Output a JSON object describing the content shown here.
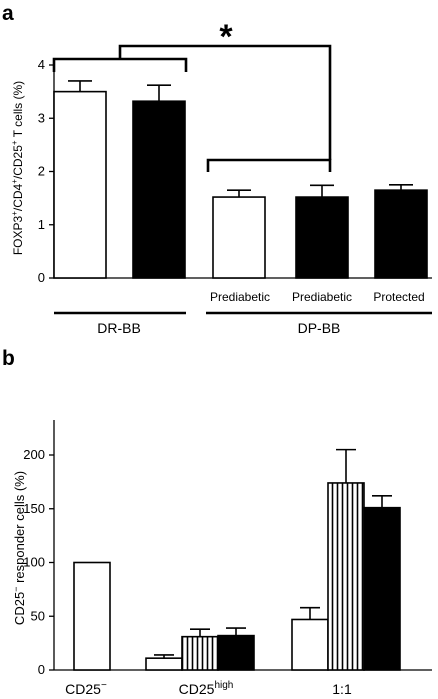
{
  "chart_data": [
    {
      "panel": "a",
      "type": "bar",
      "ylabel_parts": [
        "FOXP3",
        "+",
        "/CD4",
        "+",
        "/CD25",
        "+",
        " T cells (%)"
      ],
      "ylim": [
        0,
        4
      ],
      "yticks": [
        0,
        1,
        2,
        3,
        4
      ],
      "groups": [
        {
          "label": "DR-BB",
          "bars": [
            {
              "value": 3.5,
              "error": 0.2,
              "fill": "white",
              "sublabel": ""
            },
            {
              "value": 3.32,
              "error": 0.3,
              "fill": "black",
              "sublabel": ""
            }
          ]
        },
        {
          "label": "DP-BB",
          "bars": [
            {
              "value": 1.52,
              "error": 0.13,
              "fill": "white",
              "sublabel": "Prediabetic"
            },
            {
              "value": 1.52,
              "error": 0.22,
              "fill": "black",
              "sublabel": "Prediabetic"
            },
            {
              "value": 1.65,
              "error": 0.1,
              "fill": "black",
              "sublabel": "Protected"
            }
          ]
        }
      ],
      "significance": "*"
    },
    {
      "panel": "b",
      "type": "bar",
      "ylabel_parts": [
        "CD25",
        "−",
        " responder cells (%)"
      ],
      "ylim": [
        0,
        220
      ],
      "yticks": [
        0,
        50,
        100,
        150,
        200
      ],
      "groups": [
        {
          "label_parts": [
            "CD25",
            "−",
            ""
          ],
          "bars": [
            {
              "value": 100,
              "error": 0,
              "fill": "white"
            }
          ]
        },
        {
          "label_parts": [
            "CD25",
            "high",
            ""
          ],
          "bars": [
            {
              "value": 11,
              "error": 3,
              "fill": "white"
            },
            {
              "value": 31,
              "error": 7,
              "fill": "striped"
            },
            {
              "value": 32,
              "error": 7,
              "fill": "black"
            }
          ]
        },
        {
          "label_parts": [
            "1:1",
            "",
            ""
          ],
          "bars": [
            {
              "value": 47,
              "error": 11,
              "fill": "white"
            },
            {
              "value": 174,
              "error": 31,
              "fill": "striped"
            },
            {
              "value": 151,
              "error": 11,
              "fill": "black"
            }
          ]
        }
      ]
    }
  ]
}
